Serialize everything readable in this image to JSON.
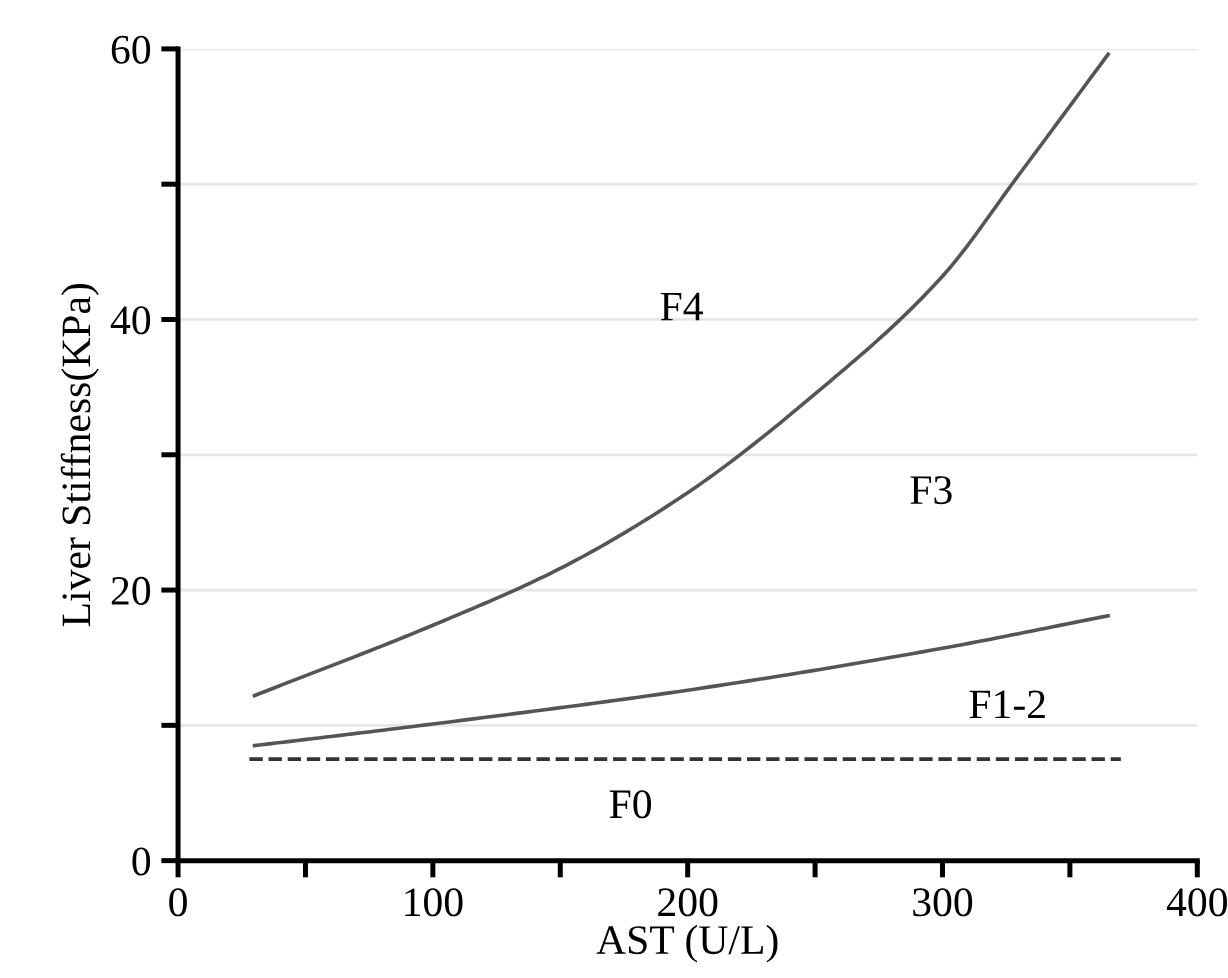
{
  "chart_data": {
    "type": "line",
    "xlabel": "AST (U/L)",
    "ylabel": "Liver Stiffness(KPa)",
    "xlim": [
      0,
      400
    ],
    "xticks": [
      0,
      {
        "value": 50,
        "label": null
      },
      100,
      {
        "value": 150,
        "label": null
      },
      200,
      {
        "value": 250,
        "label": null
      },
      300,
      {
        "value": 350,
        "label": null
      },
      400
    ],
    "ylim": [
      0,
      60
    ],
    "yticks": [
      0,
      {
        "value": 10,
        "label": null
      },
      20,
      {
        "value": 30,
        "label": null
      },
      40,
      {
        "value": 50,
        "label": null
      },
      60
    ],
    "grid": "y",
    "marker": "none",
    "series": [
      {
        "color": "#555555",
        "line_style": "solid",
        "x": [
          30,
          100,
          150,
          200,
          250,
          300,
          330,
          365
        ],
        "values": [
          12.2,
          17.4,
          21.6,
          27.2,
          34.5,
          43.2,
          50.7,
          59.6
        ]
      },
      {
        "color": "#555555",
        "line_style": "solid",
        "x": [
          30,
          100,
          200,
          300,
          365
        ],
        "values": [
          8.5,
          10.1,
          12.6,
          15.7,
          18.1
        ]
      },
      {
        "color": "#333333",
        "line_style": "dashed",
        "x": [
          28,
          370
        ],
        "values": [
          7.5,
          7.5
        ]
      }
    ],
    "annotations": [
      "F4",
      "F3",
      "F1-2",
      "F0"
    ]
  }
}
